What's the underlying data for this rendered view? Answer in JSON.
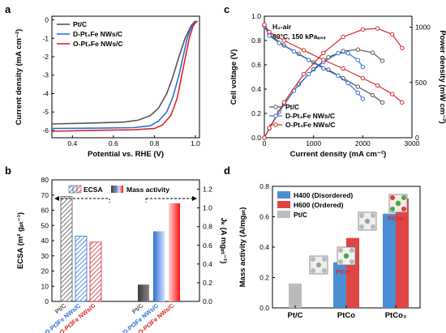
{
  "panels": {
    "a": "a",
    "b": "b",
    "c": "c",
    "d": "d"
  },
  "chart_data": [
    {
      "panel": "a",
      "type": "line",
      "xlabel": "Potential vs. RHE (V)",
      "ylabel": "Current density (mA cm⁻²)",
      "xlim": [
        0.3,
        1.02
      ],
      "ylim": [
        -6.4,
        0.2
      ],
      "xticks": [
        "0.4",
        "0.6",
        "0.8",
        "1.0"
      ],
      "yticks": [
        "0",
        "-1",
        "-2",
        "-3",
        "-4",
        "-5",
        "-6"
      ],
      "legend_position": "top-left",
      "series": [
        {
          "name": "Pt/C",
          "color": "#555555",
          "points": [
            [
              0.3,
              -5.65
            ],
            [
              0.5,
              -5.6
            ],
            [
              0.65,
              -5.55
            ],
            [
              0.72,
              -5.45
            ],
            [
              0.78,
              -5.2
            ],
            [
              0.82,
              -4.8
            ],
            [
              0.86,
              -4.0
            ],
            [
              0.89,
              -3.1
            ],
            [
              0.92,
              -2.0
            ],
            [
              0.95,
              -1.0
            ],
            [
              0.98,
              -0.3
            ],
            [
              1.0,
              -0.05
            ]
          ]
        },
        {
          "name": "D-Pt₃Fe NWs/C",
          "color": "#2e6fd6",
          "points": [
            [
              0.3,
              -5.9
            ],
            [
              0.5,
              -5.88
            ],
            [
              0.7,
              -5.85
            ],
            [
              0.78,
              -5.75
            ],
            [
              0.82,
              -5.5
            ],
            [
              0.86,
              -5.0
            ],
            [
              0.89,
              -4.2
            ],
            [
              0.92,
              -3.0
            ],
            [
              0.94,
              -2.0
            ],
            [
              0.96,
              -1.0
            ],
            [
              0.98,
              -0.4
            ],
            [
              1.0,
              -0.05
            ]
          ]
        },
        {
          "name": "O-Pt₃Fe NWs/C",
          "color": "#d62728",
          "points": [
            [
              0.3,
              -6.05
            ],
            [
              0.5,
              -6.0
            ],
            [
              0.7,
              -5.97
            ],
            [
              0.8,
              -5.9
            ],
            [
              0.84,
              -5.7
            ],
            [
              0.88,
              -5.2
            ],
            [
              0.91,
              -4.3
            ],
            [
              0.93,
              -3.2
            ],
            [
              0.95,
              -2.1
            ],
            [
              0.97,
              -1.0
            ],
            [
              0.99,
              -0.3
            ],
            [
              1.01,
              -0.05
            ]
          ]
        }
      ]
    },
    {
      "panel": "b",
      "type": "bar",
      "ylabel_left": "ECSA (m² gₚₜ⁻¹)",
      "ylabel_right": "Jₖ (A mgₚₜ⁻¹)",
      "ylim_left": [
        0,
        80
      ],
      "ylim_right": [
        0,
        1.3
      ],
      "yticks_left": [
        "0",
        "10",
        "20",
        "30",
        "40",
        "50",
        "60",
        "70",
        "80"
      ],
      "yticks_right": [
        "0.0",
        "0.2",
        "0.4",
        "0.6",
        "0.8",
        "1.0",
        "1.2"
      ],
      "legend": [
        "ECSA",
        "Mass activity"
      ],
      "categories": [
        "Pt/C",
        "D-Pt3Fe NWs/C",
        "O-Pt3Fe NWs/C"
      ],
      "ecsa": [
        69,
        43,
        39
      ],
      "mass_activity": [
        0.18,
        0.75,
        1.05
      ],
      "colors": [
        "#555555",
        "#2e6fd6",
        "#d62728"
      ]
    },
    {
      "panel": "c",
      "type": "line",
      "annotation_1": "H₂-air",
      "annotation_2": "80°C, 150 kPaₐ₆ₛ",
      "xlabel": "Current density (mA cm⁻²)",
      "ylabel_left": "Cell voltage (V)",
      "ylabel_right": "Power density (mW cm⁻²)",
      "xlim": [
        0,
        3000
      ],
      "ylim_left": [
        0.0,
        1.0
      ],
      "ylim_right": [
        0,
        1100
      ],
      "xticks": [
        "0",
        "1000",
        "2000",
        "3000"
      ],
      "yticks_left": [
        "0.0",
        "0.2",
        "0.4",
        "0.6",
        "0.8",
        "1.0"
      ],
      "yticks_right": [
        "0",
        "500",
        "1000"
      ],
      "legend_position": "bottom-left",
      "series": [
        {
          "name": "Pt/C",
          "color": "#555555",
          "voltage": [
            [
              0,
              0.93
            ],
            [
              100,
              0.85
            ],
            [
              400,
              0.76
            ],
            [
              700,
              0.69
            ],
            [
              1000,
              0.62
            ],
            [
              1300,
              0.56
            ],
            [
              1600,
              0.49
            ],
            [
              1900,
              0.42
            ],
            [
              2200,
              0.35
            ],
            [
              2400,
              0.29
            ]
          ],
          "power": [
            [
              0,
              0
            ],
            [
              100,
              85
            ],
            [
              400,
              304
            ],
            [
              700,
              483
            ],
            [
              1000,
              620
            ],
            [
              1300,
              728
            ],
            [
              1600,
              784
            ],
            [
              1900,
              798
            ],
            [
              2200,
              770
            ],
            [
              2400,
              696
            ]
          ]
        },
        {
          "name": "D-Pt₃Fe NWs/C",
          "color": "#2e6fd6",
          "voltage": [
            [
              0,
              0.92
            ],
            [
              100,
              0.84
            ],
            [
              300,
              0.78
            ],
            [
              600,
              0.71
            ],
            [
              900,
              0.64
            ],
            [
              1200,
              0.57
            ],
            [
              1500,
              0.51
            ],
            [
              1700,
              0.45
            ],
            [
              1900,
              0.37
            ],
            [
              2000,
              0.32
            ]
          ],
          "power": [
            [
              0,
              0
            ],
            [
              100,
              84
            ],
            [
              300,
              234
            ],
            [
              600,
              426
            ],
            [
              900,
              576
            ],
            [
              1200,
              684
            ],
            [
              1500,
              765
            ],
            [
              1700,
              765
            ],
            [
              1900,
              703
            ],
            [
              2000,
              640
            ]
          ]
        },
        {
          "name": "O-Pt₃Fe NWs/C",
          "color": "#d62728",
          "voltage": [
            [
              0,
              0.93
            ],
            [
              100,
              0.87
            ],
            [
              400,
              0.8
            ],
            [
              800,
              0.72
            ],
            [
              1200,
              0.64
            ],
            [
              1600,
              0.57
            ],
            [
              2000,
              0.49
            ],
            [
              2300,
              0.43
            ],
            [
              2600,
              0.36
            ],
            [
              2800,
              0.29
            ]
          ],
          "power": [
            [
              0,
              0
            ],
            [
              100,
              87
            ],
            [
              400,
              320
            ],
            [
              800,
              576
            ],
            [
              1200,
              768
            ],
            [
              1600,
              912
            ],
            [
              2000,
              980
            ],
            [
              2300,
              989
            ],
            [
              2600,
              936
            ],
            [
              2800,
              812
            ]
          ]
        }
      ]
    },
    {
      "panel": "d",
      "type": "bar",
      "ylabel": "Mass activity (A/mgₚₜ)",
      "ylim": [
        0,
        0.8
      ],
      "yticks": [
        "0.0",
        "0.2",
        "0.4",
        "0.6",
        "0.8"
      ],
      "categories": [
        "Pt/C",
        "PtCo",
        "PtCo₃"
      ],
      "series": [
        {
          "name": "H400 (Disordered)",
          "color": "#4a8fd4",
          "values": [
            null,
            0.3,
            0.62
          ]
        },
        {
          "name": "H600 (Ordered)",
          "color": "#e04545",
          "values": [
            null,
            0.46,
            0.72
          ]
        },
        {
          "name": "Pt/C",
          "color": "#bbbbbb",
          "values": [
            0.16,
            null,
            null
          ]
        }
      ],
      "legend_position": "top-left",
      "annotations": [
        "PtCo",
        "PtCo₃"
      ]
    }
  ]
}
